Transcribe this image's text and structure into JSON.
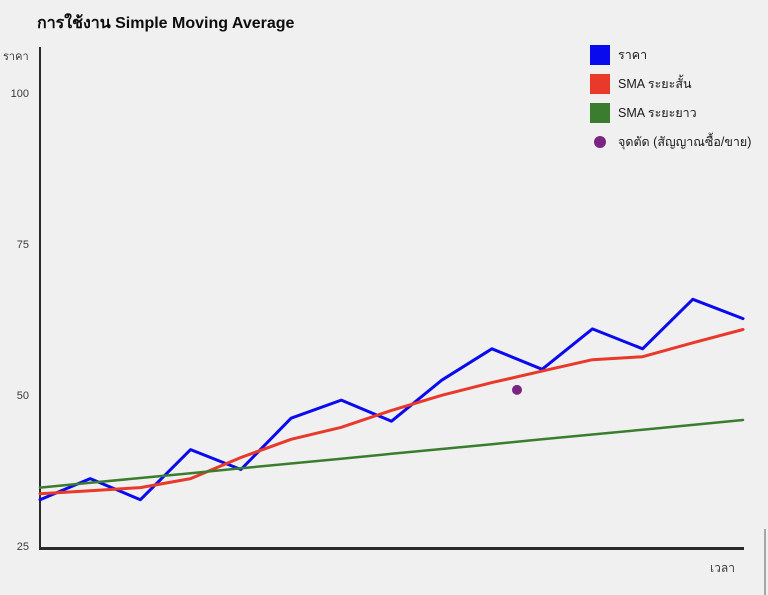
{
  "title": "การใช้งาน Simple Moving Average",
  "axes": {
    "y_label": "ราคา",
    "x_label": "เวลา"
  },
  "legend": {
    "items": [
      {
        "label": "ราคา",
        "shape": "square",
        "color": "#0a0aee"
      },
      {
        "label": "SMA ระยะสั้น",
        "shape": "square",
        "color": "#e8392a"
      },
      {
        "label": "SMA ระยะยาว",
        "shape": "square",
        "color": "#3a7d2e"
      },
      {
        "label": "จุดตัด (สัญญาณซื้อ/ขาย)",
        "shape": "circle",
        "color": "#7b2583"
      }
    ]
  },
  "colors": {
    "background": "#f0f0f0",
    "axis": "#2a2a2a",
    "tick_text": "#3a3a3a"
  },
  "chart_data": {
    "type": "line",
    "title": "การใช้งาน Simple Moving Average",
    "xlabel": "เวลา",
    "ylabel": "ราคา",
    "x": [
      1,
      2,
      3,
      4,
      5,
      6,
      7,
      8,
      9,
      10,
      11,
      12,
      13,
      14,
      15
    ],
    "series": [
      {
        "name": "ราคา",
        "color": "#0a0aee",
        "stroke_width": 3,
        "values": [
          33,
          36.5,
          33,
          41.3,
          38,
          46.5,
          49.5,
          46,
          52.8,
          58,
          54.6,
          61.3,
          58,
          66.2,
          63
        ]
      },
      {
        "name": "SMA ระยะสั้น",
        "color": "#e8392a",
        "stroke_width": 3,
        "values": [
          34,
          34.5,
          35,
          36.5,
          40,
          43,
          45,
          47.8,
          50.3,
          52.4,
          54.3,
          56.2,
          56.7,
          59,
          61.2
        ]
      },
      {
        "name": "SMA ระยะยาว",
        "color": "#3a7d2e",
        "stroke_width": 2.5,
        "values": [
          35,
          35.8,
          36.6,
          37.4,
          38.2,
          39,
          39.8,
          40.6,
          41.4,
          42.2,
          43,
          43.8,
          44.6,
          45.4,
          46.2
        ]
      }
    ],
    "markers": [
      {
        "name": "จุดตัด (สัญญาณซื้อ/ขาย)",
        "color": "#7b2583",
        "x": 10.5,
        "y": 51.2,
        "radius": 5
      }
    ],
    "xlim": [
      1,
      15
    ],
    "ylim": [
      25,
      108
    ],
    "yticks": [
      100,
      75,
      50,
      25
    ],
    "grid": false,
    "legend_position": "top-right"
  }
}
